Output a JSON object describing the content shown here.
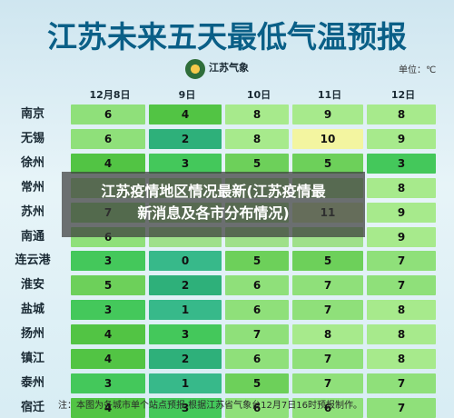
{
  "title": "江苏未来五天最低气温预报",
  "org": "江苏气象",
  "unit": "单位：℃",
  "columns": [
    "12月8日",
    "9日",
    "10日",
    "11日",
    "12日"
  ],
  "rows": [
    {
      "city": "南京",
      "values": [
        "6",
        "4",
        "8",
        "9",
        "8"
      ]
    },
    {
      "city": "无锡",
      "values": [
        "6",
        "2",
        "8",
        "10",
        "9"
      ]
    },
    {
      "city": "徐州",
      "values": [
        "4",
        "3",
        "5",
        "5",
        "3"
      ]
    },
    {
      "city": "常州",
      "values": [
        "",
        "",
        "",
        "",
        "8"
      ]
    },
    {
      "city": "苏州",
      "values": [
        "7",
        "",
        "",
        "11",
        "9"
      ]
    },
    {
      "city": "南通",
      "values": [
        "6",
        "",
        "",
        "",
        "9"
      ]
    },
    {
      "city": "连云港",
      "values": [
        "3",
        "0",
        "5",
        "5",
        "7"
      ]
    },
    {
      "city": "淮安",
      "values": [
        "5",
        "2",
        "6",
        "7",
        "7"
      ]
    },
    {
      "city": "盐城",
      "values": [
        "3",
        "1",
        "6",
        "7",
        "8"
      ]
    },
    {
      "city": "扬州",
      "values": [
        "4",
        "3",
        "7",
        "8",
        "8"
      ]
    },
    {
      "city": "镇江",
      "values": [
        "4",
        "2",
        "6",
        "7",
        "8"
      ]
    },
    {
      "city": "泰州",
      "values": [
        "3",
        "1",
        "5",
        "7",
        "7"
      ]
    },
    {
      "city": "宿迁",
      "values": [
        "4",
        "3",
        "6",
        "6",
        "7"
      ]
    }
  ],
  "overlay": {
    "line1": "江苏疫情地区情况最新(江苏疫情最",
    "line2": "新消息及各市分布情况)"
  },
  "note": "注：本图为各城市单个站点预报,根据江苏省气象台12月7日16时预报制作。",
  "colors": {
    "title": "#0a5f87",
    "banner_bg": "rgba(60,60,60,0.72)"
  }
}
